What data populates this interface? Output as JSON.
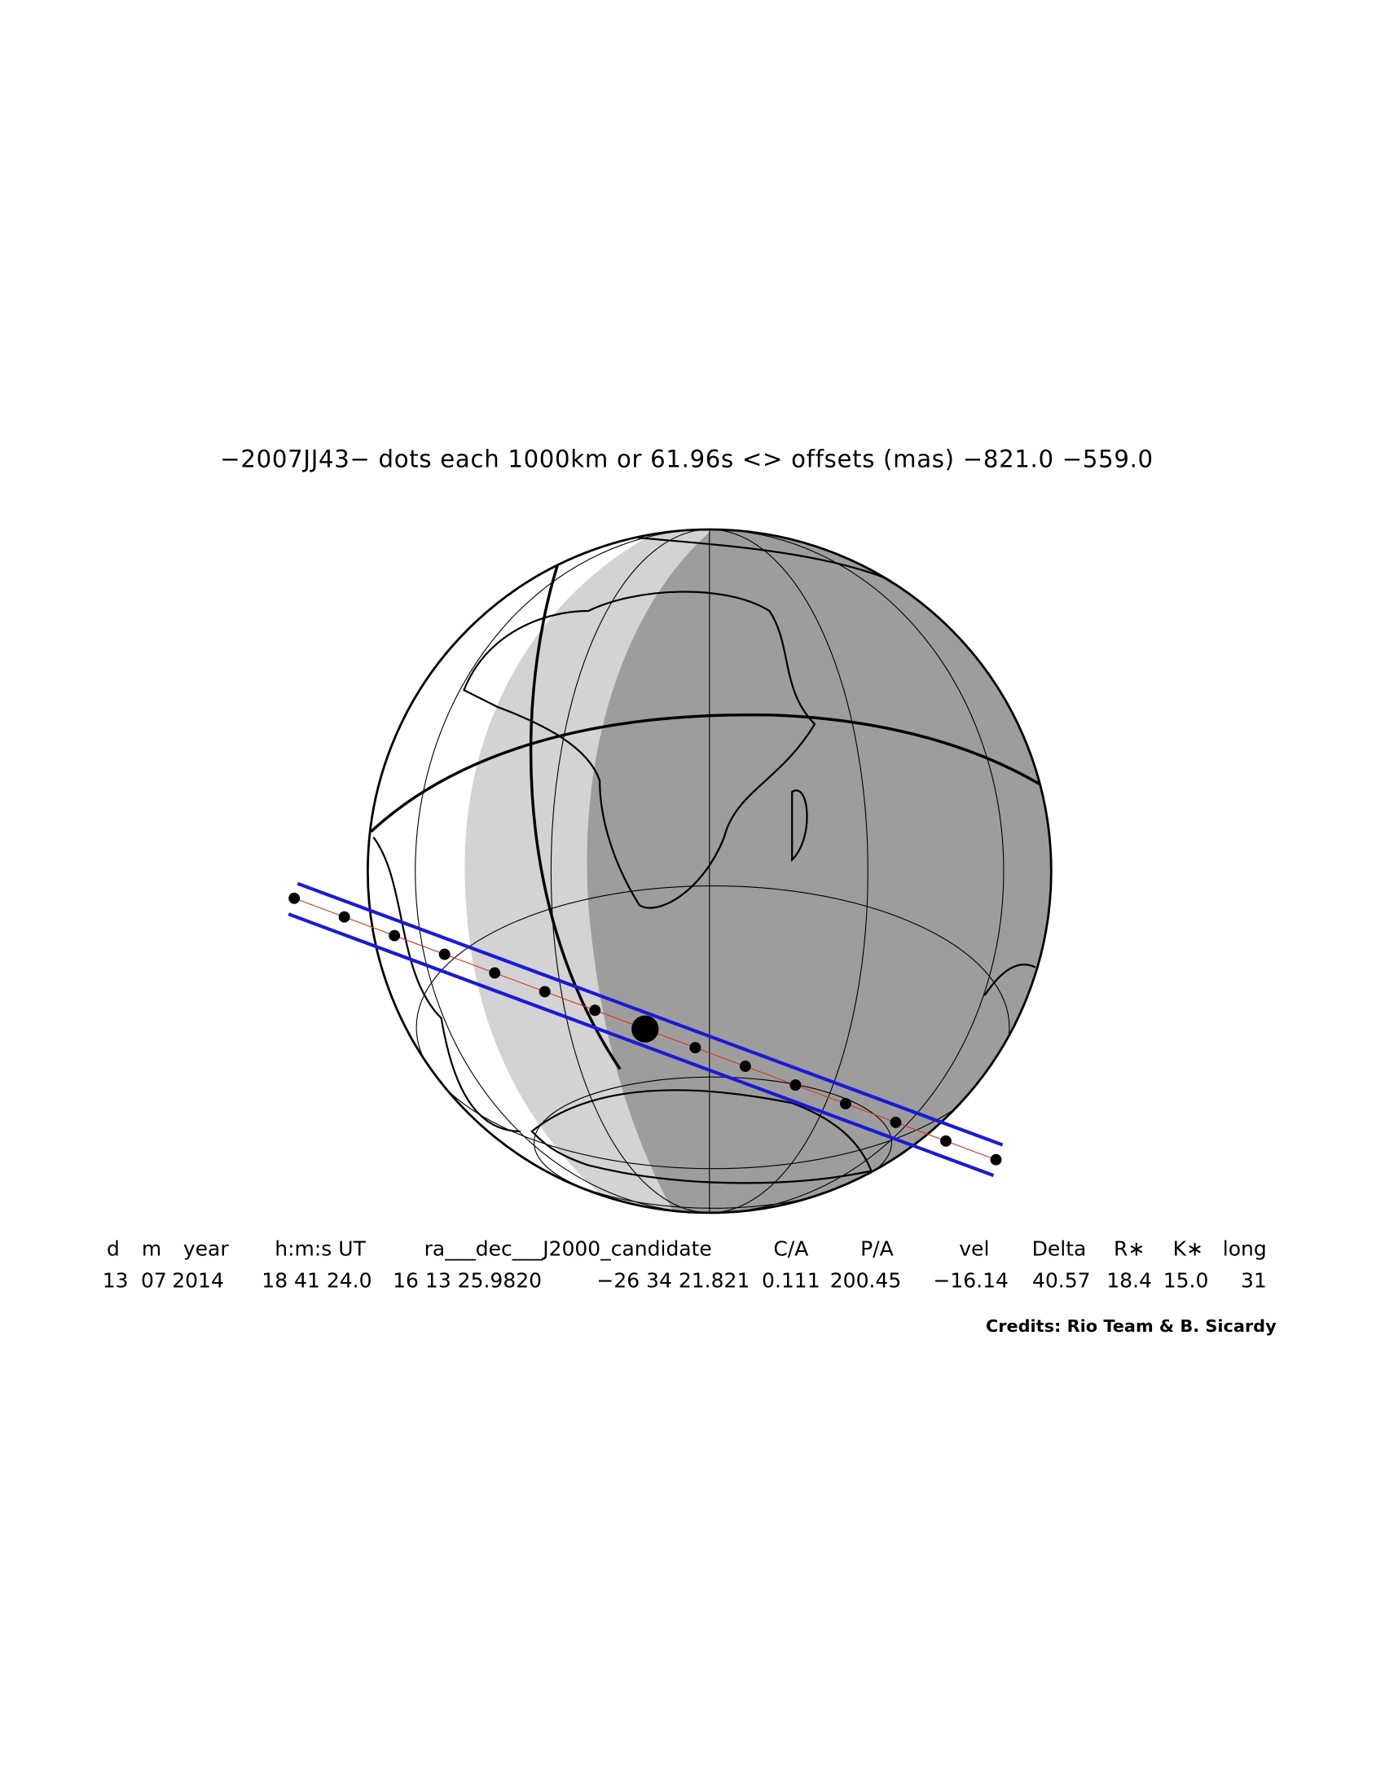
{
  "title": "−2007JJ43− dots each 1000km or 61.96s <> offsets (mas) −821.0 −559.0",
  "table": {
    "header": [
      "d",
      "m",
      "year",
      "h:m:s UT",
      "ra___dec___J2000_candidate",
      "C/A",
      "P/A",
      "vel",
      "Delta",
      "R∗",
      "K∗",
      "long"
    ],
    "values": [
      "13",
      "07",
      "2014",
      "18 41 24.0",
      "16 13 25.9820",
      "−26 34 21.821",
      "0.111",
      "200.45",
      "−16.14",
      "40.57",
      "18.4",
      "15.0",
      "31"
    ]
  },
  "credits": "Credits: Rio Team & B. Sicardy"
}
